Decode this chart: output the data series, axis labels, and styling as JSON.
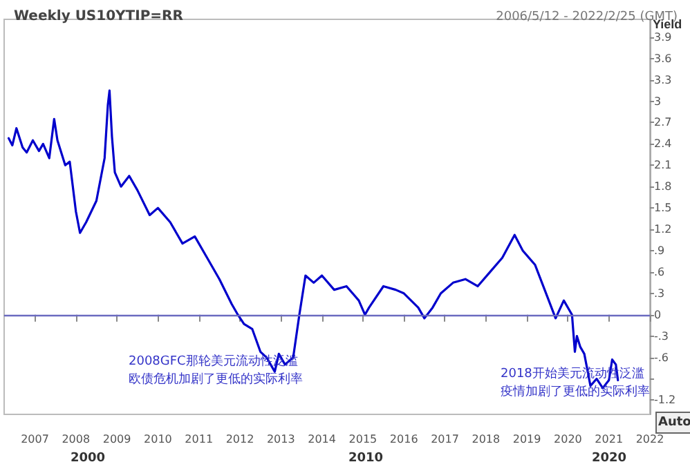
{
  "chart_data": {
    "type": "line",
    "title": "Weekly US10YTIP=RR",
    "subtitle": "2006/5/12 - 2022/2/25 (GMT)",
    "ylabel": "Yield",
    "annotations": [
      "2008GFC那轮美元流动性泛滥",
      "欧债危机加剧了更低的实际利率",
      "2018开始美元流动性泛滥",
      "疫情加剧了更低的实际利率",
      "2000",
      "2010",
      "2020",
      "Auto"
    ],
    "x": [
      2006.36,
      2006.45,
      2006.55,
      2006.7,
      2006.8,
      2006.95,
      2007.1,
      2007.2,
      2007.35,
      2007.47,
      2007.55,
      2007.74,
      2007.85,
      2008.0,
      2008.1,
      2008.25,
      2008.5,
      2008.7,
      2008.78,
      2008.82,
      2008.88,
      2008.95,
      2009.1,
      2009.3,
      2009.5,
      2009.8,
      2010.0,
      2010.3,
      2010.6,
      2010.9,
      2011.2,
      2011.5,
      2011.8,
      2011.95,
      2012.1,
      2012.3,
      2012.5,
      2012.65,
      2012.85,
      2012.95,
      2013.1,
      2013.3,
      2013.45,
      2013.6,
      2013.8,
      2014.0,
      2014.3,
      2014.6,
      2014.9,
      2015.05,
      2015.15,
      2015.5,
      2015.8,
      2016.0,
      2016.35,
      2016.5,
      2016.7,
      2016.9,
      2017.2,
      2017.5,
      2017.8,
      2018.1,
      2018.4,
      2018.7,
      2018.9,
      2019.2,
      2019.5,
      2019.7,
      2019.9,
      2020.1,
      2020.17,
      2020.22,
      2020.3,
      2020.4,
      2020.55,
      2020.7,
      2020.85,
      2021.0,
      2021.08,
      2021.17,
      2021.22
    ],
    "values": [
      2.48,
      2.38,
      2.62,
      2.35,
      2.28,
      2.45,
      2.3,
      2.4,
      2.2,
      2.75,
      2.45,
      2.1,
      2.15,
      1.45,
      1.15,
      1.3,
      1.6,
      2.2,
      2.95,
      3.15,
      2.5,
      2.0,
      1.8,
      1.95,
      1.75,
      1.4,
      1.5,
      1.3,
      1.0,
      1.1,
      0.8,
      0.5,
      0.15,
      0.0,
      -0.13,
      -0.2,
      -0.52,
      -0.6,
      -0.8,
      -0.55,
      -0.7,
      -0.6,
      0.0,
      0.55,
      0.45,
      0.55,
      0.35,
      0.4,
      0.2,
      0.0,
      0.1,
      0.4,
      0.35,
      0.3,
      0.1,
      -0.05,
      0.1,
      0.3,
      0.45,
      0.5,
      0.4,
      0.6,
      0.8,
      1.12,
      0.9,
      0.7,
      0.25,
      -0.05,
      0.2,
      0.0,
      -0.52,
      -0.3,
      -0.45,
      -0.55,
      -1.0,
      -0.9,
      -1.03,
      -0.92,
      -0.63,
      -0.7,
      -0.92
    ],
    "color": "#0000cc",
    "xlim": [
      2006.25,
      2022
    ],
    "ylim": [
      -1.4,
      4.15
    ],
    "xticks": [
      2007,
      2008,
      2009,
      2010,
      2011,
      2012,
      2013,
      2014,
      2015,
      2016,
      2017,
      2018,
      2019,
      2020,
      2021,
      2022
    ],
    "yticks": [
      {
        "value": -1.2,
        "label": "-1.2"
      },
      {
        "value": -0.9,
        "label": null
      },
      {
        "value": -0.6,
        "label": "-.6"
      },
      {
        "value": -0.3,
        "label": "-.3"
      },
      0,
      {
        "value": 0.3,
        "label": ".3"
      },
      {
        "value": 0.6,
        "label": ".6"
      },
      {
        "value": 0.9,
        "label": ".9"
      },
      1.2,
      1.5,
      1.8,
      2.1,
      2.4,
      2.7,
      3,
      3.3,
      3.6,
      3.9
    ],
    "ref_lines": [
      {
        "axis": "y",
        "value": 0,
        "color": "#6a6ac0"
      }
    ],
    "grid": false,
    "marker": "none",
    "line_style": "solid"
  }
}
